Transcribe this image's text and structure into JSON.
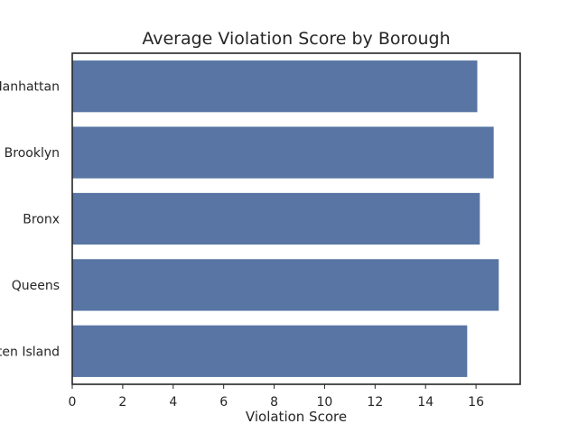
{
  "chart_data": {
    "type": "bar",
    "orientation": "horizontal",
    "title": "Average Violation Score by Borough",
    "xlabel": "Violation Score",
    "ylabel": "",
    "categories": [
      "Manhattan",
      "Brooklyn",
      "Bronx",
      "Queens",
      "Staten Island"
    ],
    "values": [
      16.05,
      16.7,
      16.15,
      16.9,
      15.65
    ],
    "xlim": [
      0,
      17.75
    ],
    "xticks": [
      0,
      2,
      4,
      6,
      8,
      10,
      12,
      14,
      16
    ],
    "grid": false,
    "color": "#5875a4"
  }
}
